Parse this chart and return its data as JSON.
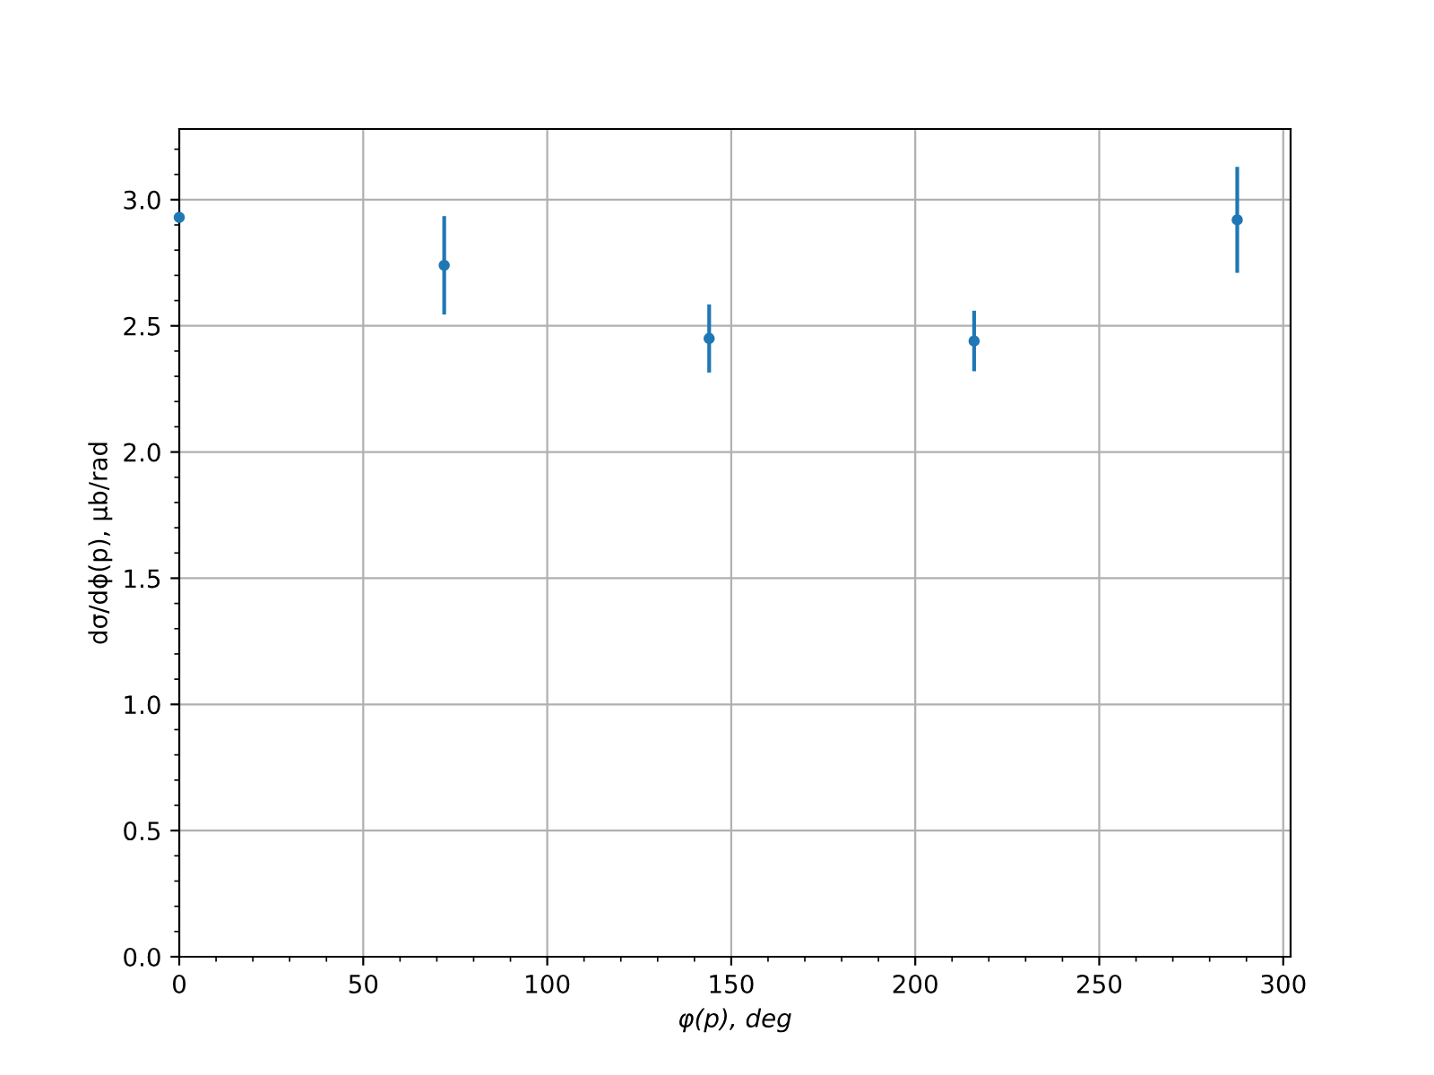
{
  "chart_data": {
    "type": "scatter",
    "xlabel": "φ(p), deg",
    "ylabel": "dσ/dϕ(p), μb/rad",
    "x": [
      0,
      72,
      144,
      216,
      287.5
    ],
    "series": [
      {
        "color": "#1f77b4",
        "values": [
          2.93,
          2.74,
          2.45,
          2.44,
          2.92
        ],
        "errors": [
          null,
          0.195,
          0.135,
          0.12,
          0.21
        ]
      }
    ],
    "xlim": [
      0,
      302
    ],
    "ylim": [
      0,
      3.28
    ],
    "xticks": [
      0,
      50,
      100,
      150,
      200,
      250,
      300
    ],
    "yticks": [
      {
        "value": 0,
        "label": "0.0"
      },
      {
        "value": 0.5,
        "label": "0.5"
      },
      {
        "value": 1,
        "label": "1.0"
      },
      {
        "value": 1.5,
        "label": "1.5"
      },
      {
        "value": 2,
        "label": "2.0"
      },
      {
        "value": 2.5,
        "label": "2.5"
      },
      {
        "value": 3,
        "label": "3.0"
      }
    ],
    "grid": true,
    "marker": "circle"
  }
}
